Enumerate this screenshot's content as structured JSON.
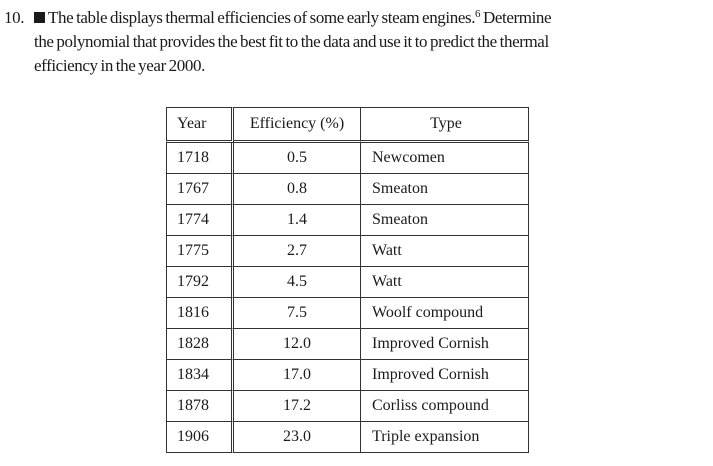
{
  "problem": {
    "number": "10.",
    "line1": "The table displays thermal efficiencies of some early steam engines.",
    "footnote": "6",
    "line1_end": " Determine",
    "line2": "the polynomial that provides the best fit to the data and use it to predict the thermal",
    "line3": "efficiency in the year 2000."
  },
  "table": {
    "headers": [
      "Year",
      "Efficiency (%)",
      "Type"
    ],
    "rows": [
      [
        "1718",
        "0.5",
        "Newcomen"
      ],
      [
        "1767",
        "0.8",
        "Smeaton"
      ],
      [
        "1774",
        "1.4",
        "Smeaton"
      ],
      [
        "1775",
        "2.7",
        "Watt"
      ],
      [
        "1792",
        "4.5",
        "Watt"
      ],
      [
        "1816",
        "7.5",
        "Woolf compound"
      ],
      [
        "1828",
        "12.0",
        "Improved Cornish"
      ],
      [
        "1834",
        "17.0",
        "Improved Cornish"
      ],
      [
        "1878",
        "17.2",
        "Corliss compound"
      ],
      [
        "1906",
        "23.0",
        "Triple expansion"
      ]
    ]
  }
}
